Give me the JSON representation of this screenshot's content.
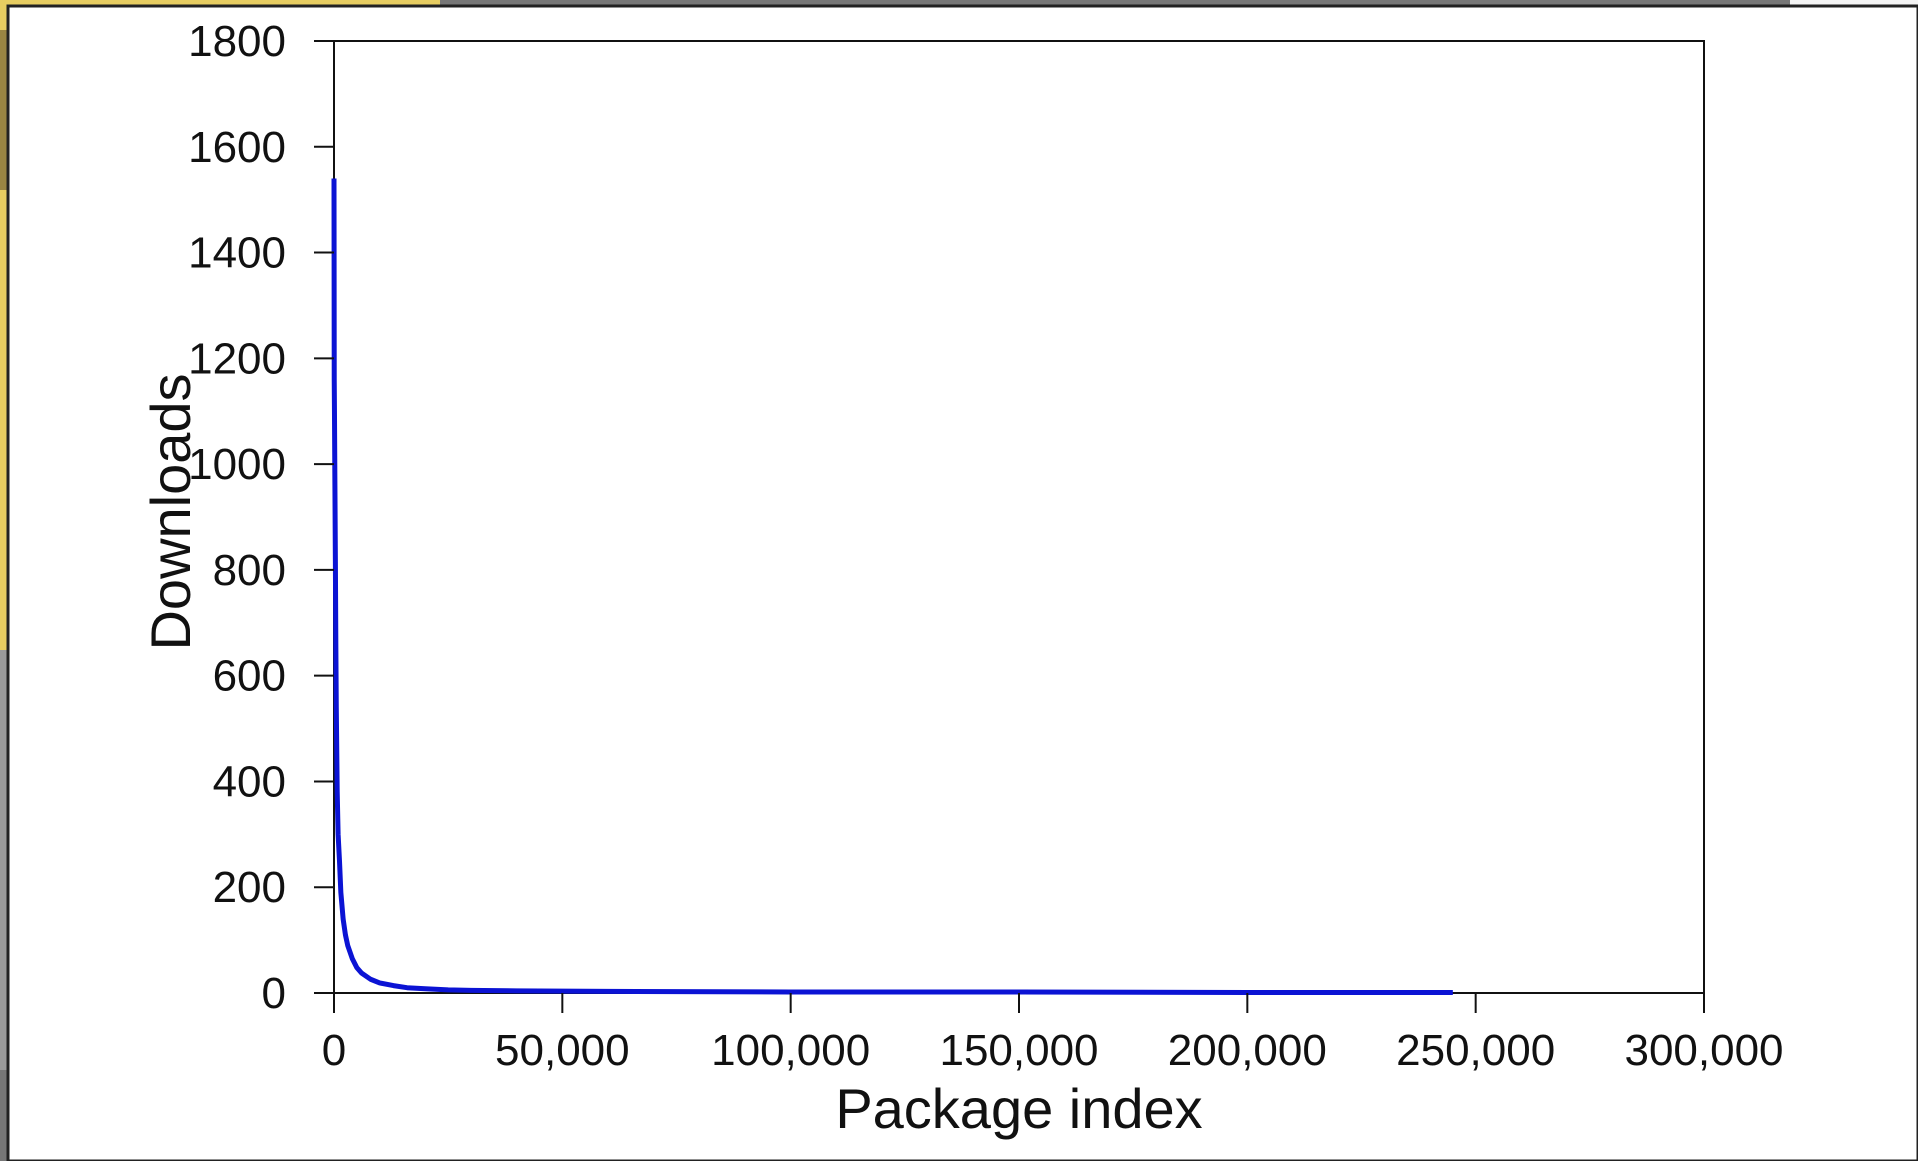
{
  "chart_data": {
    "type": "line",
    "title": "",
    "xlabel": "Package index",
    "ylabel": "Downloads",
    "xlim": [
      0,
      300000
    ],
    "ylim": [
      0,
      1800
    ],
    "x_ticks": [
      0,
      50000,
      100000,
      150000,
      200000,
      250000,
      300000
    ],
    "x_tick_labels": [
      "0",
      "50,000",
      "100,000",
      "150,000",
      "200,000",
      "250,000",
      "300,000"
    ],
    "y_ticks": [
      0,
      200,
      400,
      600,
      800,
      1000,
      1200,
      1400,
      1600,
      1800
    ],
    "y_tick_labels": [
      "0",
      "200",
      "400",
      "600",
      "800",
      "1000",
      "1200",
      "1400",
      "1600",
      "1800"
    ],
    "grid": false,
    "legend": "none",
    "series": [
      {
        "color": "#0b13d4",
        "x": [
          0,
          50,
          100,
          200,
          300,
          400,
          500,
          700,
          900,
          1200,
          1500,
          2000,
          2500,
          3000,
          4000,
          5000,
          6000,
          8000,
          10000,
          13000,
          16000,
          20000,
          25000,
          30000,
          40000,
          60000,
          100000,
          150000,
          200000,
          245000
        ],
        "y": [
          1540,
          1160,
          1100,
          960,
          820,
          660,
          540,
          380,
          300,
          250,
          190,
          140,
          110,
          90,
          65,
          48,
          38,
          26,
          19,
          14,
          10,
          8,
          6,
          5,
          4,
          3,
          2,
          2,
          1,
          1
        ]
      }
    ]
  }
}
